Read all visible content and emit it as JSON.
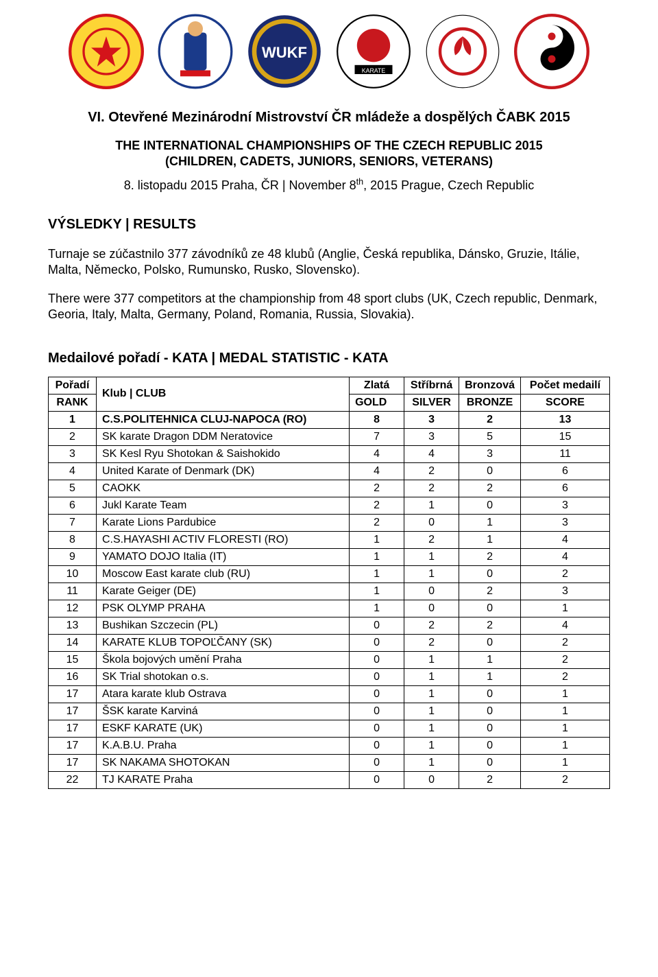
{
  "doc": {
    "title": "VI. Otevřené Mezinárodní Mistrovství ČR mládeže a dospělých ČABK 2015",
    "subtitle1": "THE INTERNATIONAL CHAMPIONSHIPS OF THE CZECH REPUBLIC 2015",
    "subtitle1b": "(CHILDREN, CADETS, JUNIORS, SENIORS, VETERANS)",
    "date_pre": "8. listopadu 2015 Praha, ČR | November 8",
    "date_sup": "th",
    "date_post": ", 2015 Prague, Czech Republic",
    "results_heading": "VÝSLEDKY | RESULTS",
    "para1": "Turnaje se zúčastnilo 377 závodníků ze 48 klubů (Anglie, Česká republika, Dánsko, Gruzie, Itálie, Malta, Německo, Polsko, Rumunsko, Rusko, Slovensko).",
    "para2": "There were 377 competitors at the championship from 48 sport clubs (UK, Czech republic, Denmark, Georia, Italy, Malta, Germany, Poland, Romania, Russia, Slovakia).",
    "stat_heading": "Medailové pořadí - KATA | MEDAL STATISTIC - KATA"
  },
  "logos": {
    "count": 6,
    "items": [
      {
        "name": "cabk-logo",
        "bg": "#fdd535",
        "accent": "#d4141a"
      },
      {
        "name": "jukl-team-logo",
        "bg": "#ffffff",
        "accent": "#1a3a8a"
      },
      {
        "name": "wukf-logo",
        "bg": "#1a2a6e",
        "accent": "#d9a518"
      },
      {
        "name": "kesl-ryu-logo",
        "bg": "#ffffff",
        "accent": "#c8181e"
      },
      {
        "name": "united-world-karate-logo",
        "bg": "#ffffff",
        "accent": "#c8181e"
      },
      {
        "name": "cubu-logo",
        "bg": "#ffffff",
        "accent": "#c8181e"
      }
    ]
  },
  "table": {
    "headers_top": {
      "rank": "Pořadí",
      "club": "Klub | CLUB",
      "gold": "Zlatá",
      "silver": "Stříbrná",
      "bronze": "Bronzová",
      "score": "Počet medailí"
    },
    "headers_bot": {
      "rank": "RANK",
      "gold": "GOLD",
      "silver": "SILVER",
      "bronze": "BRONZE",
      "score": "SCORE"
    },
    "rows": [
      {
        "rank": "1",
        "club": "C.S.POLITEHNICA CLUJ-NAPOCA (RO)",
        "g": "8",
        "s": "3",
        "b": "2",
        "t": "13",
        "bold": true
      },
      {
        "rank": "2",
        "club": "SK karate Dragon DDM Neratovice",
        "g": "7",
        "s": "3",
        "b": "5",
        "t": "15"
      },
      {
        "rank": "3",
        "club": "SK Kesl Ryu Shotokan & Saishokido",
        "g": "4",
        "s": "4",
        "b": "3",
        "t": "11"
      },
      {
        "rank": "4",
        "club": "United Karate of Denmark (DK)",
        "g": "4",
        "s": "2",
        "b": "0",
        "t": "6"
      },
      {
        "rank": "5",
        "club": "CAOKK",
        "g": "2",
        "s": "2",
        "b": "2",
        "t": "6"
      },
      {
        "rank": "6",
        "club": "Jukl Karate Team",
        "g": "2",
        "s": "1",
        "b": "0",
        "t": "3"
      },
      {
        "rank": "7",
        "club": "Karate Lions Pardubice",
        "g": "2",
        "s": "0",
        "b": "1",
        "t": "3"
      },
      {
        "rank": "8",
        "club": "C.S.HAYASHI ACTIV FLORESTI (RO)",
        "g": "1",
        "s": "2",
        "b": "1",
        "t": "4"
      },
      {
        "rank": "9",
        "club": "YAMATO DOJO Italia (IT)",
        "g": "1",
        "s": "1",
        "b": "2",
        "t": "4"
      },
      {
        "rank": "10",
        "club": "Moscow East karate club (RU)",
        "g": "1",
        "s": "1",
        "b": "0",
        "t": "2"
      },
      {
        "rank": "11",
        "club": "Karate Geiger (DE)",
        "g": "1",
        "s": "0",
        "b": "2",
        "t": "3"
      },
      {
        "rank": "12",
        "club": "PSK OLYMP PRAHA",
        "g": "1",
        "s": "0",
        "b": "0",
        "t": "1"
      },
      {
        "rank": "13",
        "club": "Bushikan Szczecin (PL)",
        "g": "0",
        "s": "2",
        "b": "2",
        "t": "4"
      },
      {
        "rank": "14",
        "club": "KARATE KLUB TOPOĽČANY (SK)",
        "g": "0",
        "s": "2",
        "b": "0",
        "t": "2"
      },
      {
        "rank": "15",
        "club": "Škola bojových umění Praha",
        "g": "0",
        "s": "1",
        "b": "1",
        "t": "2"
      },
      {
        "rank": "16",
        "club": "SK Trial shotokan o.s.",
        "g": "0",
        "s": "1",
        "b": "1",
        "t": "2"
      },
      {
        "rank": "17",
        "club": "Atara karate klub Ostrava",
        "g": "0",
        "s": "1",
        "b": "0",
        "t": "1"
      },
      {
        "rank": "17",
        "club": "ŠSK karate Karviná",
        "g": "0",
        "s": "1",
        "b": "0",
        "t": "1"
      },
      {
        "rank": "17",
        "club": "ESKF KARATE (UK)",
        "g": "0",
        "s": "1",
        "b": "0",
        "t": "1"
      },
      {
        "rank": "17",
        "club": "K.A.B.U. Praha",
        "g": "0",
        "s": "1",
        "b": "0",
        "t": "1"
      },
      {
        "rank": "17",
        "club": "SK NAKAMA SHOTOKAN",
        "g": "0",
        "s": "1",
        "b": "0",
        "t": "1"
      },
      {
        "rank": "22",
        "club": "TJ KARATE Praha",
        "g": "0",
        "s": "0",
        "b": "2",
        "t": "2"
      }
    ]
  },
  "colors": {
    "text": "#000000",
    "bg": "#ffffff",
    "border": "#000000"
  }
}
